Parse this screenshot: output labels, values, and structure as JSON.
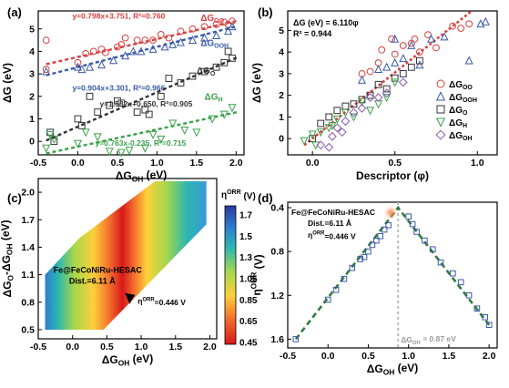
{
  "chart_data": [
    {
      "panel": "(a)",
      "type": "scatter",
      "xlabel": "ΔG_OH (eV)",
      "ylabel": "ΔG (eV)",
      "xlim": [
        -0.5,
        2.1
      ],
      "ylim": [
        -0.6,
        5.8
      ],
      "xticks": [
        "-0.5",
        "0.0",
        "0.5",
        "1.0",
        "1.5",
        "2.0"
      ],
      "yticks": [
        "0",
        "1",
        "2",
        "3",
        "4",
        "5"
      ],
      "series": [
        {
          "name": "ΔG_OO",
          "marker": "circle",
          "color": "#d94040",
          "fit": {
            "slope": 0.798,
            "intercept": 3.751,
            "label": "y=0.798x+3.751, R²=0.760"
          },
          "points": [
            [
              -0.4,
              4.5
            ],
            [
              -0.4,
              3.2
            ],
            [
              0.0,
              3.5
            ],
            [
              0.1,
              3.9
            ],
            [
              0.2,
              4.0
            ],
            [
              0.3,
              4.1
            ],
            [
              0.35,
              3.95
            ],
            [
              0.5,
              4.2
            ],
            [
              0.55,
              4.3
            ],
            [
              0.6,
              4.6
            ],
            [
              0.75,
              4.5
            ],
            [
              0.85,
              4.5
            ],
            [
              0.95,
              4.5
            ],
            [
              1.05,
              4.75
            ],
            [
              1.15,
              4.6
            ],
            [
              1.3,
              4.9
            ],
            [
              1.45,
              5.0
            ],
            [
              1.6,
              5.1
            ],
            [
              1.75,
              5.2
            ],
            [
              1.85,
              5.3
            ],
            [
              1.9,
              5.2
            ],
            [
              1.95,
              5.35
            ]
          ]
        },
        {
          "name": "ΔG_OOH",
          "marker": "triangle-up",
          "color": "#3a5aa8",
          "fit": {
            "slope": 0.904,
            "intercept": 3.301,
            "label": "y=0.904x+3.301, R²=0.966"
          },
          "points": [
            [
              -0.4,
              3.1
            ],
            [
              0.0,
              3.3
            ],
            [
              0.05,
              3.2
            ],
            [
              0.15,
              3.3
            ],
            [
              0.3,
              3.4
            ],
            [
              0.45,
              3.6
            ],
            [
              0.6,
              3.8
            ],
            [
              0.7,
              4.0
            ],
            [
              0.8,
              4.0
            ],
            [
              0.95,
              4.1
            ],
            [
              1.1,
              4.2
            ],
            [
              1.2,
              4.3
            ],
            [
              1.3,
              4.4
            ],
            [
              1.45,
              4.5
            ],
            [
              1.6,
              4.6
            ],
            [
              1.75,
              4.7
            ],
            [
              1.9,
              4.9
            ],
            [
              1.95,
              5.1
            ]
          ]
        },
        {
          "name": "ΔG_O",
          "marker": "square",
          "color": "#333333",
          "fit": {
            "slope": 1.532,
            "intercept": 0.65,
            "label": "y=1.532x+0.650, R²=0.905"
          },
          "points": [
            [
              -0.35,
              0.4
            ],
            [
              -0.3,
              0.0
            ],
            [
              0.0,
              1.0
            ],
            [
              0.05,
              0.7
            ],
            [
              0.15,
              2.0
            ],
            [
              0.25,
              1.3
            ],
            [
              0.4,
              1.6
            ],
            [
              0.5,
              1.8
            ],
            [
              0.55,
              1.7
            ],
            [
              0.75,
              1.3
            ],
            [
              0.85,
              1.4
            ],
            [
              0.9,
              1.2
            ],
            [
              1.05,
              2.0
            ],
            [
              1.15,
              2.8
            ],
            [
              1.3,
              2.6
            ],
            [
              1.45,
              2.9
            ],
            [
              1.6,
              3.1
            ],
            [
              1.75,
              3.3
            ],
            [
              1.85,
              3.5
            ],
            [
              1.9,
              4.0
            ],
            [
              1.95,
              3.7
            ]
          ]
        },
        {
          "name": "ΔG_H",
          "marker": "triangle-down",
          "color": "#3aa04a",
          "fit": {
            "slope": 0.763,
            "intercept": -0.235,
            "label": "y=0.763x-0.235, R²=0.715"
          },
          "points": [
            [
              -0.4,
              -0.3
            ],
            [
              -0.35,
              0.3
            ],
            [
              -0.3,
              0.1
            ],
            [
              0.0,
              -0.1
            ],
            [
              0.1,
              0.4
            ],
            [
              0.25,
              0.2
            ],
            [
              0.4,
              -0.45
            ],
            [
              0.55,
              -0.5
            ],
            [
              0.65,
              -0.4
            ],
            [
              0.85,
              -0.3
            ],
            [
              0.95,
              0.3
            ],
            [
              1.05,
              0.1
            ],
            [
              1.2,
              0.8
            ],
            [
              1.35,
              0.5
            ],
            [
              1.5,
              0.4
            ],
            [
              1.7,
              1.0
            ],
            [
              1.85,
              1.2
            ],
            [
              1.95,
              1.5
            ]
          ]
        }
      ]
    },
    {
      "panel": "(b)",
      "type": "scatter",
      "xlabel": "Descriptor (φ)",
      "ylabel": "ΔG (eV)",
      "xlim": [
        -0.15,
        1.12
      ],
      "ylim": [
        -0.75,
        5.9
      ],
      "xticks": [
        "0.0",
        "0.5",
        "1.0"
      ],
      "yticks": [
        "0",
        "1",
        "2",
        "3",
        "4",
        "5"
      ],
      "fit": {
        "slope": 6.11,
        "intercept": 0,
        "label": "ΔG (eV) = 6.110φ",
        "r2": "R² = 0.944"
      },
      "legend": [
        "ΔG_OO",
        "ΔG_OOH",
        "ΔG_O",
        "ΔG_H",
        "ΔG_OH"
      ],
      "series": [
        {
          "name": "ΔG_OO",
          "marker": "circle",
          "color": "#d94040",
          "points": [
            [
              0.3,
              3.0
            ],
            [
              0.35,
              3.1
            ],
            [
              0.42,
              4.1
            ],
            [
              0.48,
              4.6
            ],
            [
              0.5,
              3.9
            ],
            [
              0.55,
              4.3
            ],
            [
              0.6,
              4.4
            ],
            [
              0.65,
              4.0
            ],
            [
              0.7,
              4.8
            ],
            [
              0.75,
              4.2
            ],
            [
              0.85,
              5.2
            ],
            [
              0.9,
              5.1
            ],
            [
              0.95,
              5.3
            ],
            [
              0.4,
              3.5
            ],
            [
              0.62,
              4.6
            ]
          ]
        },
        {
          "name": "ΔG_OOH",
          "marker": "triangle-up",
          "color": "#3a5aa8",
          "points": [
            [
              0.3,
              2.7
            ],
            [
              0.4,
              3.2
            ],
            [
              0.45,
              3.3
            ],
            [
              0.5,
              4.6
            ],
            [
              0.55,
              3.7
            ],
            [
              0.6,
              4.3
            ],
            [
              0.65,
              3.4
            ],
            [
              0.72,
              4.6
            ],
            [
              0.8,
              4.7
            ],
            [
              0.95,
              3.6
            ],
            [
              1.02,
              5.3
            ],
            [
              1.05,
              5.4
            ],
            [
              0.5,
              3.5
            ]
          ]
        },
        {
          "name": "ΔG_O",
          "marker": "square",
          "color": "#333333",
          "points": [
            [
              0.0,
              0.0
            ],
            [
              0.05,
              0.7
            ],
            [
              0.1,
              1.0
            ],
            [
              0.15,
              1.3
            ],
            [
              0.2,
              1.5
            ],
            [
              0.25,
              1.6
            ],
            [
              0.3,
              1.8
            ],
            [
              0.35,
              2.0
            ],
            [
              0.4,
              2.5
            ],
            [
              0.45,
              2.3
            ],
            [
              0.5,
              2.8
            ],
            [
              0.55,
              3.0
            ],
            [
              0.6,
              3.3
            ],
            [
              0.65,
              3.6
            ]
          ]
        },
        {
          "name": "ΔG_H",
          "marker": "triangle-down",
          "color": "#3aa04a",
          "points": [
            [
              -0.05,
              -0.1
            ],
            [
              0.0,
              0.2
            ],
            [
              0.02,
              -0.3
            ],
            [
              0.05,
              0.3
            ],
            [
              0.1,
              0.5
            ],
            [
              0.15,
              0.9
            ],
            [
              0.2,
              1.2
            ],
            [
              0.25,
              1.0
            ],
            [
              0.3,
              1.7
            ],
            [
              0.35,
              1.3
            ],
            [
              0.4,
              1.6
            ],
            [
              0.45,
              1.9
            ],
            [
              0.5,
              2.6
            ],
            [
              0.12,
              0.6
            ]
          ]
        },
        {
          "name": "ΔG_OH",
          "marker": "diamond",
          "color": "#8a5ab0",
          "points": [
            [
              0.05,
              -0.3
            ],
            [
              0.1,
              -0.4
            ],
            [
              0.12,
              0.1
            ],
            [
              0.15,
              0.5
            ],
            [
              0.18,
              0.3
            ],
            [
              0.2,
              0.8
            ],
            [
              0.25,
              1.2
            ],
            [
              0.3,
              1.4
            ],
            [
              0.35,
              1.9
            ],
            [
              0.4,
              1.9
            ],
            [
              0.45,
              2.1
            ],
            [
              0.55,
              2.6
            ]
          ]
        }
      ]
    },
    {
      "panel": "(c)",
      "type": "heatmap",
      "xlabel": "ΔG_OH (eV)",
      "ylabel": "ΔG_O-ΔG_OH (eV)",
      "xlim": [
        -0.5,
        2.1
      ],
      "ylim": [
        0.4,
        2.15
      ],
      "xticks": [
        "-0.5",
        "0.0",
        "0.5",
        "1.0",
        "1.5",
        "2.0"
      ],
      "yticks": [
        "0.5",
        "0.8",
        "1.1",
        "1.4",
        "1.7",
        "2.0"
      ],
      "colorbar": {
        "title": "η^ORR (V)",
        "ticks": [
          "1.7",
          "1.5",
          "1.3",
          "1.05",
          "0.85",
          "0.65",
          "0.45"
        ],
        "min": 0.45,
        "max": 1.8
      },
      "annotation": {
        "label": "Fe@FeCoNiRu-HESAC",
        "dist": "Dist.=6.11 Å",
        "value": "η^ORR=0.446 V",
        "x": 0.87,
        "y": 0.84
      }
    },
    {
      "panel": "(d)",
      "type": "scatter",
      "xlabel": "ΔG_OH (eV)",
      "ylabel": "η^ORR (V)",
      "xlim": [
        -0.5,
        2.1
      ],
      "ylim": [
        1.68,
        0.35
      ],
      "y_inverted": true,
      "xticks": [
        "-0.5",
        "0.0",
        "0.5",
        "1.0",
        "1.5",
        "2.0"
      ],
      "yticks": [
        "0.4",
        "0.8",
        "1.2",
        "1.6"
      ],
      "volcano": {
        "apex": [
          0.87,
          0.4
        ],
        "left": [
          -0.4,
          1.6
        ],
        "right": [
          2.0,
          1.47
        ]
      },
      "vline": {
        "x": 0.87,
        "label": "ΔG_OH = 0.87 eV"
      },
      "highlight": {
        "label": "Fe@FeCoNiRu-HESAC",
        "dist": "Dist.=6.11 Å",
        "value": "η^ORR=0.446 V",
        "x": 0.78,
        "y": 0.446
      },
      "series": [
        {
          "name": "squares",
          "marker": "square",
          "color": "#3a5aa8",
          "points": [
            [
              -0.4,
              1.6
            ],
            [
              0.0,
              1.24
            ],
            [
              0.1,
              1.15
            ],
            [
              0.2,
              1.05
            ],
            [
              0.3,
              0.95
            ],
            [
              0.4,
              0.87
            ],
            [
              0.45,
              0.85
            ],
            [
              0.5,
              0.8
            ],
            [
              0.55,
              0.74
            ],
            [
              0.6,
              0.7
            ],
            [
              0.65,
              0.66
            ],
            [
              0.7,
              0.6
            ],
            [
              0.75,
              0.56
            ],
            [
              1.0,
              0.48
            ],
            [
              1.05,
              0.55
            ],
            [
              1.1,
              0.62
            ],
            [
              1.2,
              0.7
            ],
            [
              1.3,
              0.78
            ],
            [
              1.4,
              0.9
            ],
            [
              1.55,
              1.0
            ],
            [
              1.65,
              1.08
            ],
            [
              1.75,
              1.2
            ],
            [
              1.85,
              1.32
            ],
            [
              1.95,
              1.4
            ],
            [
              2.0,
              1.47
            ]
          ]
        }
      ]
    }
  ]
}
